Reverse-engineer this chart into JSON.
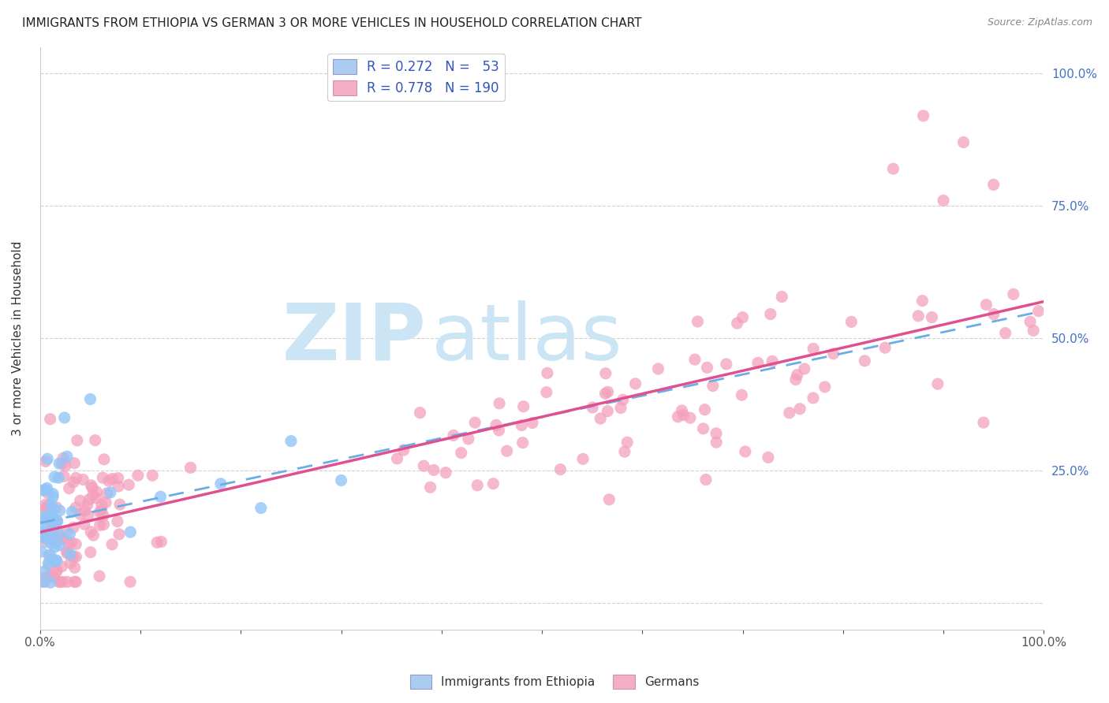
{
  "title": "IMMIGRANTS FROM ETHIOPIA VS GERMAN 3 OR MORE VEHICLES IN HOUSEHOLD CORRELATION CHART",
  "source": "Source: ZipAtlas.com",
  "ylabel": "3 or more Vehicles in Household",
  "color_ethiopia": "#92c5f7",
  "color_german": "#f4a0bc",
  "color_line_ethiopia": "#6aaee8",
  "color_line_german": "#e05090",
  "background_color": "#ffffff",
  "grid_color": "#cccccc",
  "tick_color_right": "#4472c4",
  "tick_color_bottom": "#555555",
  "watermark_zip_color": "#c8dff0",
  "watermark_atlas_color": "#c8e0f0"
}
